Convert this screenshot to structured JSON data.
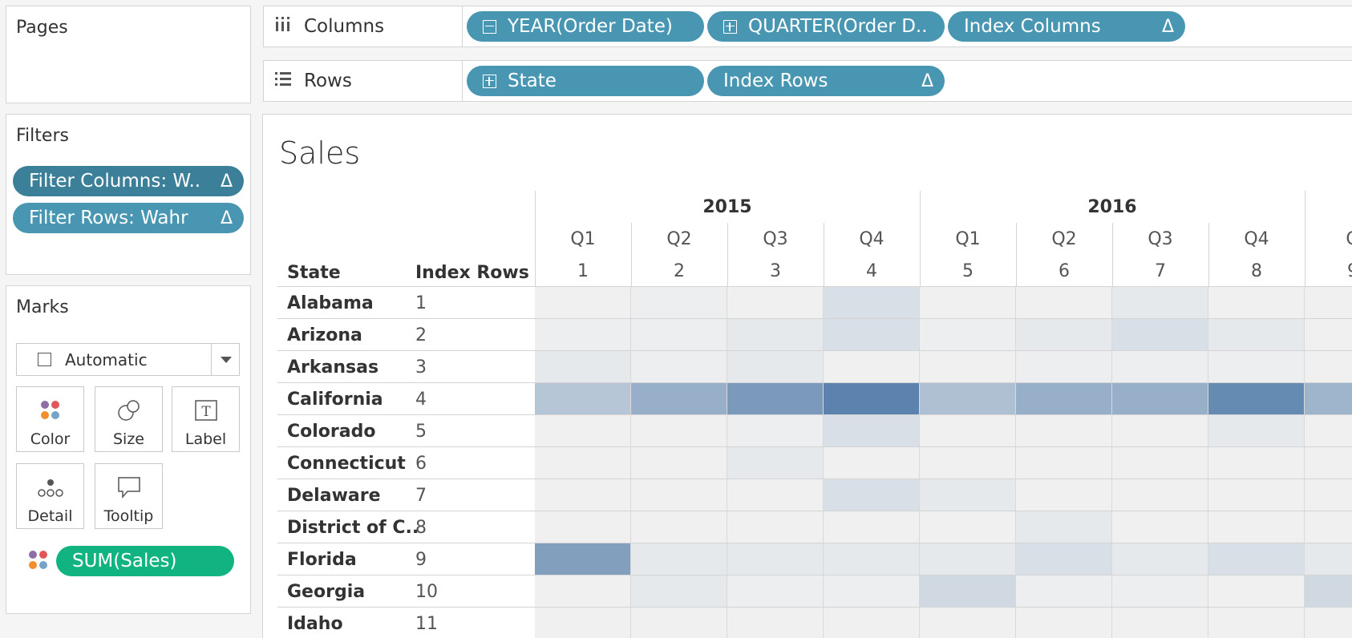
{
  "pages": {
    "title": "Pages"
  },
  "filters": {
    "title": "Filters",
    "items": [
      {
        "label": "Filter Columns: W..",
        "delta": "Δ"
      },
      {
        "label": "Filter Rows: Wahr",
        "delta": "Δ"
      }
    ]
  },
  "marks": {
    "title": "Marks",
    "type": "Automatic",
    "buttons": [
      "Color",
      "Size",
      "Label",
      "Detail",
      "Tooltip"
    ],
    "measure": "SUM(Sales)"
  },
  "shelves": {
    "columns": {
      "label": "Columns",
      "pills": [
        {
          "label": "YEAR(Order Date)",
          "box": "minus"
        },
        {
          "label": "QUARTER(Order D..",
          "box": "plus"
        },
        {
          "label": "Index Columns",
          "delta": "Δ"
        }
      ]
    },
    "rows": {
      "label": "Rows",
      "pills": [
        {
          "label": "State",
          "box": "plus"
        },
        {
          "label": "Index Rows",
          "delta": "Δ"
        }
      ]
    }
  },
  "view": {
    "title": "Sales",
    "years": [
      "2015",
      "2016"
    ],
    "columns": [
      {
        "q": "Q1",
        "idx": "1"
      },
      {
        "q": "Q2",
        "idx": "2"
      },
      {
        "q": "Q3",
        "idx": "3"
      },
      {
        "q": "Q4",
        "idx": "4"
      },
      {
        "q": "Q1",
        "idx": "5"
      },
      {
        "q": "Q2",
        "idx": "6"
      },
      {
        "q": "Q3",
        "idx": "7"
      },
      {
        "q": "Q4",
        "idx": "8"
      },
      {
        "q": "Q",
        "idx": "9"
      }
    ],
    "row_headers": {
      "state": "State",
      "index": "Index Rows"
    },
    "rows": [
      {
        "state": "Alabama",
        "idx": "1"
      },
      {
        "state": "Arizona",
        "idx": "2"
      },
      {
        "state": "Arkansas",
        "idx": "3"
      },
      {
        "state": "California",
        "idx": "4"
      },
      {
        "state": "Colorado",
        "idx": "5"
      },
      {
        "state": "Connecticut",
        "idx": "6"
      },
      {
        "state": "Delaware",
        "idx": "7"
      },
      {
        "state": "District of C..",
        "idx": "8"
      },
      {
        "state": "Florida",
        "idx": "9"
      },
      {
        "state": "Georgia",
        "idx": "10"
      },
      {
        "state": "Idaho",
        "idx": "11"
      }
    ],
    "heat": [
      [
        0.0,
        0.02,
        0.0,
        0.14,
        0.0,
        0.0,
        0.06,
        0.0,
        0.0
      ],
      [
        0.02,
        0.02,
        0.06,
        0.14,
        0.02,
        0.06,
        0.14,
        0.06,
        0.0
      ],
      [
        0.06,
        0.02,
        0.06,
        0.0,
        0.0,
        0.02,
        0.02,
        0.02,
        0.0
      ],
      [
        0.35,
        0.55,
        0.72,
        0.92,
        0.4,
        0.55,
        0.55,
        0.85,
        0.5
      ],
      [
        0.0,
        0.0,
        0.02,
        0.14,
        0.0,
        0.0,
        0.0,
        0.06,
        0.0
      ],
      [
        0.0,
        0.0,
        0.06,
        0.0,
        0.0,
        0.0,
        0.0,
        0.0,
        0.0
      ],
      [
        0.0,
        0.0,
        0.0,
        0.14,
        0.06,
        0.0,
        0.0,
        0.0,
        0.0
      ],
      [
        0.0,
        0.0,
        0.0,
        0.0,
        0.0,
        0.06,
        0.0,
        0.0,
        0.0
      ],
      [
        0.68,
        0.06,
        0.06,
        0.06,
        0.06,
        0.14,
        0.06,
        0.14,
        0.06
      ],
      [
        0.0,
        0.06,
        0.02,
        0.02,
        0.2,
        0.02,
        0.02,
        0.0,
        0.2
      ],
      [
        0.0,
        0.0,
        0.0,
        0.0,
        0.0,
        0.0,
        0.0,
        0.0,
        0.0
      ]
    ],
    "colors": {
      "low": "#f0f0f0",
      "high": "#4e79a7"
    }
  }
}
